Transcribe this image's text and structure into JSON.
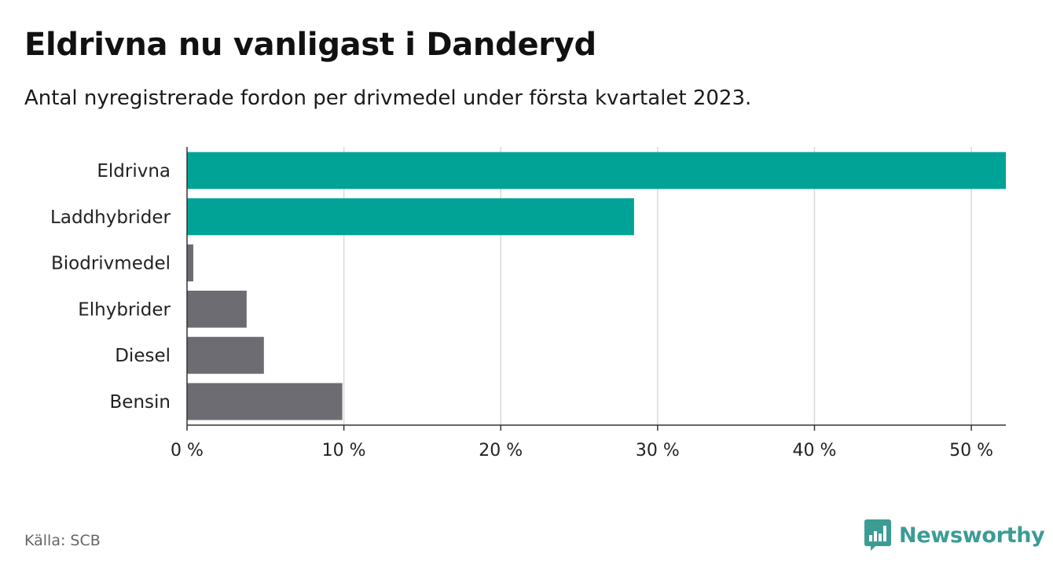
{
  "colors": {
    "highlight": "#00a396",
    "muted": "#6d6c73",
    "grid": "#d9d9d9",
    "axis": "#333333",
    "brand": "#3b9c94"
  },
  "chart_data": {
    "type": "bar",
    "orientation": "horizontal",
    "title": "Eldrivna nu vanligast i Danderyd",
    "subtitle": "Antal nyregistrerade fordon per drivmedel under första kvartalet 2023.",
    "categories": [
      "Eldrivna",
      "Laddhybrider",
      "Biodrivmedel",
      "Elhybrider",
      "Diesel",
      "Bensin"
    ],
    "values": [
      52.2,
      28.5,
      0.4,
      3.8,
      4.9,
      9.9
    ],
    "highlighted": [
      true,
      true,
      false,
      false,
      false,
      false
    ],
    "unit": "%",
    "xlim": [
      0,
      52.2
    ],
    "xticks": [
      0,
      10,
      20,
      30,
      40,
      50
    ],
    "xtick_labels": [
      "0 %",
      "10 %",
      "20 %",
      "30 %",
      "40 %",
      "50 %"
    ],
    "grid": true,
    "xlabel": "",
    "ylabel": ""
  },
  "footer": {
    "source": "Källa: SCB",
    "brand": "Newsworthy",
    "brand_icon": "bar-chart-logo-icon"
  }
}
